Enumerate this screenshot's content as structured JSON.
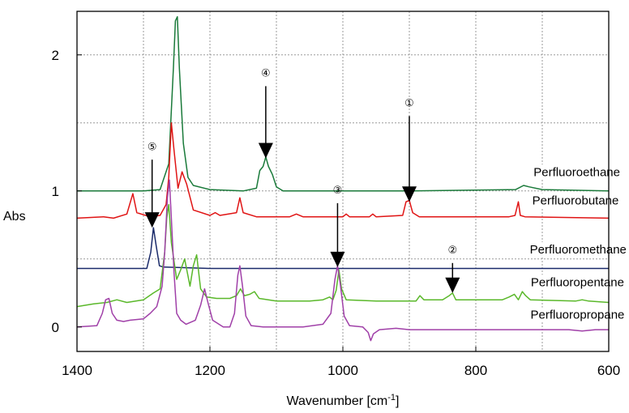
{
  "chart_data": {
    "type": "line",
    "title": "",
    "xlabel": "Wavenumber [cm-1]",
    "xlabel_parts": {
      "main": "Wavenumber [cm",
      "sup": "-1",
      "close": "]"
    },
    "ylabel": "Abs",
    "xlim": [
      1400,
      600
    ],
    "x_reversed": true,
    "ylim": [
      -0.18,
      2.32
    ],
    "x_ticks": [
      1400,
      1200,
      1000,
      800,
      600
    ],
    "x_tick_labels": [
      "1400",
      "1200",
      "1000",
      "800",
      "600"
    ],
    "x_grid": [
      1300,
      1100,
      900,
      700
    ],
    "y_ticks": [
      0,
      1,
      2
    ],
    "y_tick_labels": [
      "0",
      "1",
      "2"
    ],
    "y_grid": [
      0.5,
      1.0,
      1.5,
      2.0
    ],
    "grid": true,
    "series": [
      {
        "name": "Perfluoroethane",
        "color": "#1a7a3a",
        "points": [
          [
            1400,
            1.0
          ],
          [
            1300,
            1.0
          ],
          [
            1275,
            1.01
          ],
          [
            1262,
            1.2
          ],
          [
            1255,
            1.9
          ],
          [
            1252,
            2.25
          ],
          [
            1249,
            2.28
          ],
          [
            1246,
            1.9
          ],
          [
            1240,
            1.35
          ],
          [
            1233,
            1.1
          ],
          [
            1225,
            1.04
          ],
          [
            1200,
            1.01
          ],
          [
            1150,
            1.0
          ],
          [
            1130,
            1.02
          ],
          [
            1125,
            1.15
          ],
          [
            1120,
            1.18
          ],
          [
            1116,
            1.25
          ],
          [
            1112,
            1.18
          ],
          [
            1106,
            1.12
          ],
          [
            1100,
            1.03
          ],
          [
            1090,
            1.0
          ],
          [
            900,
            1.0
          ],
          [
            740,
            1.01
          ],
          [
            728,
            1.04
          ],
          [
            720,
            1.03
          ],
          [
            700,
            1.01
          ],
          [
            600,
            1.0
          ]
        ]
      },
      {
        "name": "Perfluorobutane",
        "color": "#e01414",
        "points": [
          [
            1400,
            0.8
          ],
          [
            1360,
            0.81
          ],
          [
            1345,
            0.8
          ],
          [
            1325,
            0.83
          ],
          [
            1316,
            0.98
          ],
          [
            1310,
            0.84
          ],
          [
            1290,
            0.81
          ],
          [
            1275,
            0.82
          ],
          [
            1266,
            0.9
          ],
          [
            1262,
            1.1
          ],
          [
            1258,
            1.5
          ],
          [
            1254,
            1.3
          ],
          [
            1248,
            1.02
          ],
          [
            1242,
            1.14
          ],
          [
            1235,
            1.05
          ],
          [
            1225,
            0.86
          ],
          [
            1200,
            0.82
          ],
          [
            1192,
            0.84
          ],
          [
            1185,
            0.82
          ],
          [
            1160,
            0.84
          ],
          [
            1155,
            0.95
          ],
          [
            1150,
            0.84
          ],
          [
            1130,
            0.81
          ],
          [
            1080,
            0.81
          ],
          [
            1070,
            0.83
          ],
          [
            1060,
            0.81
          ],
          [
            1000,
            0.81
          ],
          [
            995,
            0.83
          ],
          [
            990,
            0.81
          ],
          [
            960,
            0.81
          ],
          [
            955,
            0.83
          ],
          [
            950,
            0.81
          ],
          [
            910,
            0.82
          ],
          [
            905,
            0.92
          ],
          [
            900,
            0.93
          ],
          [
            895,
            0.84
          ],
          [
            885,
            0.81
          ],
          [
            750,
            0.81
          ],
          [
            741,
            0.82
          ],
          [
            736,
            0.92
          ],
          [
            733,
            0.82
          ],
          [
            726,
            0.81
          ],
          [
            600,
            0.8
          ]
        ]
      },
      {
        "name": "Perfluoromethane",
        "color": "#1a2a6a",
        "points": [
          [
            1400,
            0.43
          ],
          [
            1295,
            0.43
          ],
          [
            1289,
            0.55
          ],
          [
            1285,
            0.73
          ],
          [
            1281,
            0.6
          ],
          [
            1276,
            0.45
          ],
          [
            1270,
            0.44
          ],
          [
            1200,
            0.43
          ],
          [
            600,
            0.43
          ]
        ]
      },
      {
        "name": "Perfluoropentane",
        "color": "#5ab82a",
        "points": [
          [
            1400,
            0.15
          ],
          [
            1375,
            0.17
          ],
          [
            1355,
            0.18
          ],
          [
            1340,
            0.2
          ],
          [
            1325,
            0.18
          ],
          [
            1300,
            0.2
          ],
          [
            1285,
            0.25
          ],
          [
            1275,
            0.28
          ],
          [
            1268,
            0.55
          ],
          [
            1265,
            0.8
          ],
          [
            1262,
            0.9
          ],
          [
            1258,
            0.62
          ],
          [
            1250,
            0.35
          ],
          [
            1244,
            0.42
          ],
          [
            1238,
            0.5
          ],
          [
            1230,
            0.3
          ],
          [
            1225,
            0.45
          ],
          [
            1220,
            0.53
          ],
          [
            1214,
            0.28
          ],
          [
            1205,
            0.22
          ],
          [
            1190,
            0.21
          ],
          [
            1170,
            0.21
          ],
          [
            1160,
            0.23
          ],
          [
            1154,
            0.28
          ],
          [
            1148,
            0.23
          ],
          [
            1140,
            0.24
          ],
          [
            1133,
            0.26
          ],
          [
            1126,
            0.21
          ],
          [
            1100,
            0.19
          ],
          [
            1050,
            0.19
          ],
          [
            1030,
            0.2
          ],
          [
            1020,
            0.22
          ],
          [
            1015,
            0.2
          ],
          [
            1010,
            0.27
          ],
          [
            1006,
            0.42
          ],
          [
            1002,
            0.28
          ],
          [
            995,
            0.2
          ],
          [
            950,
            0.19
          ],
          [
            890,
            0.19
          ],
          [
            884,
            0.23
          ],
          [
            878,
            0.2
          ],
          [
            850,
            0.2
          ],
          [
            840,
            0.23
          ],
          [
            835,
            0.25
          ],
          [
            830,
            0.2
          ],
          [
            760,
            0.2
          ],
          [
            750,
            0.22
          ],
          [
            742,
            0.24
          ],
          [
            736,
            0.2
          ],
          [
            730,
            0.26
          ],
          [
            725,
            0.23
          ],
          [
            718,
            0.2
          ],
          [
            650,
            0.19
          ],
          [
            640,
            0.2
          ],
          [
            630,
            0.19
          ],
          [
            600,
            0.18
          ]
        ]
      },
      {
        "name": "Perfluoropropane",
        "color": "#a040a8",
        "points": [
          [
            1400,
            0.0
          ],
          [
            1370,
            0.01
          ],
          [
            1362,
            0.1
          ],
          [
            1357,
            0.2
          ],
          [
            1352,
            0.21
          ],
          [
            1347,
            0.1
          ],
          [
            1340,
            0.05
          ],
          [
            1330,
            0.04
          ],
          [
            1320,
            0.05
          ],
          [
            1300,
            0.06
          ],
          [
            1290,
            0.1
          ],
          [
            1280,
            0.15
          ],
          [
            1272,
            0.3
          ],
          [
            1268,
            0.55
          ],
          [
            1264,
            0.95
          ],
          [
            1261,
            1.08
          ],
          [
            1258,
            0.8
          ],
          [
            1254,
            0.4
          ],
          [
            1250,
            0.1
          ],
          [
            1244,
            0.05
          ],
          [
            1236,
            0.02
          ],
          [
            1222,
            0.05
          ],
          [
            1214,
            0.16
          ],
          [
            1208,
            0.28
          ],
          [
            1203,
            0.18
          ],
          [
            1196,
            0.05
          ],
          [
            1180,
            0.0
          ],
          [
            1170,
            0.0
          ],
          [
            1163,
            0.1
          ],
          [
            1158,
            0.38
          ],
          [
            1155,
            0.45
          ],
          [
            1151,
            0.3
          ],
          [
            1146,
            0.08
          ],
          [
            1138,
            0.01
          ],
          [
            1120,
            0.0
          ],
          [
            1060,
            0.0
          ],
          [
            1030,
            0.02
          ],
          [
            1018,
            0.1
          ],
          [
            1012,
            0.35
          ],
          [
            1008,
            0.45
          ],
          [
            1004,
            0.32
          ],
          [
            998,
            0.08
          ],
          [
            990,
            0.01
          ],
          [
            970,
            0.0
          ],
          [
            962,
            -0.04
          ],
          [
            958,
            -0.1
          ],
          [
            954,
            -0.05
          ],
          [
            945,
            -0.02
          ],
          [
            920,
            -0.01
          ],
          [
            900,
            -0.02
          ],
          [
            880,
            -0.02
          ],
          [
            860,
            -0.02
          ],
          [
            820,
            -0.02
          ],
          [
            780,
            -0.02
          ],
          [
            740,
            -0.02
          ],
          [
            700,
            -0.02
          ],
          [
            660,
            -0.02
          ],
          [
            640,
            -0.03
          ],
          [
            620,
            -0.02
          ],
          [
            600,
            -0.02
          ]
        ]
      }
    ],
    "series_labels": [
      {
        "name": "Perfluoroethane",
        "x": 648,
        "y": 1.11
      },
      {
        "name": "Perfluorobutane",
        "x": 650,
        "y": 0.9
      },
      {
        "name": "Perfluoromethane",
        "x": 646,
        "y": 0.54
      },
      {
        "name": "Perfluoropentane",
        "x": 647,
        "y": 0.3
      },
      {
        "name": "Perfluoropropane",
        "x": 647,
        "y": 0.06
      }
    ],
    "annotations": [
      {
        "label": "①",
        "x": 900,
        "y_text": 1.62,
        "y_top": 1.55,
        "y_tip": 0.92
      },
      {
        "label": "②",
        "x": 835,
        "y_text": 0.54,
        "y_top": 0.47,
        "y_tip": 0.25
      },
      {
        "label": "③",
        "x": 1008,
        "y_text": 0.98,
        "y_top": 0.91,
        "y_tip": 0.44
      },
      {
        "label": "④",
        "x": 1116,
        "y_text": 1.84,
        "y_top": 1.77,
        "y_tip": 1.24
      },
      {
        "label": "⑤",
        "x": 1287,
        "y_text": 1.3,
        "y_top": 1.23,
        "y_tip": 0.73
      }
    ]
  }
}
